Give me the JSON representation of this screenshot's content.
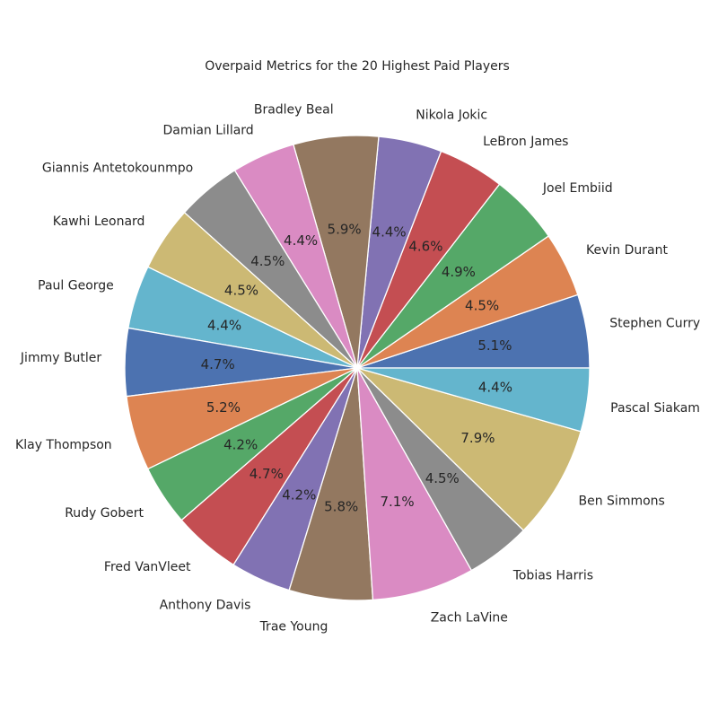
{
  "chart_data": {
    "type": "pie",
    "title": "Overpaid Metrics for the 20 Highest Paid Players",
    "start_angle_deg": 0,
    "direction": "counterclockwise",
    "labels": [
      "Stephen Curry",
      "Kevin Durant",
      "Joel Embiid",
      "LeBron James",
      "Nikola Jokic",
      "Bradley Beal",
      "Damian Lillard",
      "Giannis Antetokounmpo",
      "Kawhi Leonard",
      "Paul George",
      "Jimmy Butler",
      "Klay Thompson",
      "Rudy Gobert",
      "Fred VanVleet",
      "Anthony Davis",
      "Trae Young",
      "Zach LaVine",
      "Tobias Harris",
      "Ben Simmons",
      "Pascal Siakam"
    ],
    "values": [
      5.1,
      4.5,
      4.9,
      4.6,
      4.4,
      5.9,
      4.4,
      4.5,
      4.5,
      4.4,
      4.7,
      5.2,
      4.2,
      4.7,
      4.2,
      5.8,
      7.1,
      4.5,
      7.9,
      4.4
    ],
    "percent_labels": [
      "5.1%",
      "4.5%",
      "4.9%",
      "4.6%",
      "4.4%",
      "5.9%",
      "4.4%",
      "4.5%",
      "4.5%",
      "4.4%",
      "4.7%",
      "5.2%",
      "4.2%",
      "4.7%",
      "4.2%",
      "5.8%",
      "7.1%",
      "4.5%",
      "7.9%",
      "4.4%"
    ],
    "colors": [
      "#4c72b0",
      "#dd8452",
      "#55a868",
      "#c44e52",
      "#8172b3",
      "#937860",
      "#da8bc3",
      "#8c8c8c",
      "#ccb974",
      "#64b5cd"
    ]
  }
}
